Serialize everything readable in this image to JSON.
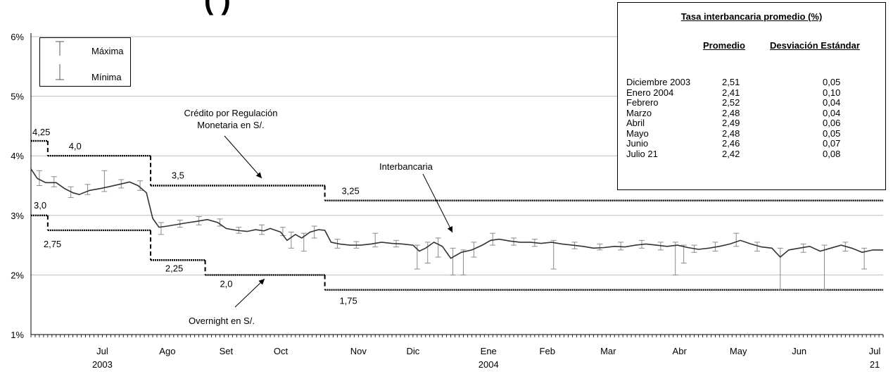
{
  "title_fragment": "(                                        )",
  "chart_data": {
    "type": "line",
    "y_axis": {
      "min": 1,
      "max": 6,
      "ticks": [
        "1%",
        "2%",
        "3%",
        "4%",
        "5%",
        "6%"
      ],
      "grid": true
    },
    "x_axis": {
      "start": "2003-06-11",
      "end": "2004-07-21",
      "labels": [
        {
          "line1": "Jul",
          "line2": "2003",
          "date": "2003-07-15"
        },
        {
          "line1": "Ago",
          "line2": "",
          "date": "2003-08-15"
        },
        {
          "line1": "Set",
          "line2": "",
          "date": "2003-09-12"
        },
        {
          "line1": "Oct",
          "line2": "",
          "date": "2003-10-08"
        },
        {
          "line1": "Nov",
          "line2": "",
          "date": "2003-11-14"
        },
        {
          "line1": "Dic",
          "line2": "",
          "date": "2003-12-10"
        },
        {
          "line1": "Ene",
          "line2": "2004",
          "date": "2004-01-15"
        },
        {
          "line1": "Feb",
          "line2": "",
          "date": "2004-02-12"
        },
        {
          "line1": "Mar",
          "line2": "",
          "date": "2004-03-12"
        },
        {
          "line1": "Abr",
          "line2": "",
          "date": "2004-04-15"
        },
        {
          "line1": "May",
          "line2": "",
          "date": "2004-05-13"
        },
        {
          "line1": "Jun",
          "line2": "",
          "date": "2004-06-11"
        },
        {
          "line1": "Jul",
          "line2": "21",
          "date": "2004-07-17"
        }
      ]
    },
    "series": [
      {
        "name": "Crédito por Regulación Monetaria en S/.",
        "role": "upper corridor",
        "steps": [
          {
            "from": "2003-06-11",
            "to": "2003-06-19",
            "value": 4.25
          },
          {
            "from": "2003-06-19",
            "to": "2003-08-07",
            "value": 4.0
          },
          {
            "from": "2003-08-07",
            "to": "2003-10-29",
            "value": 3.5
          },
          {
            "from": "2003-10-29",
            "to": "2004-07-21",
            "value": 3.25
          }
        ]
      },
      {
        "name": "Overnight en S/.",
        "role": "lower corridor",
        "steps": [
          {
            "from": "2003-06-11",
            "to": "2003-06-19",
            "value": 3.0
          },
          {
            "from": "2003-06-19",
            "to": "2003-08-07",
            "value": 2.75
          },
          {
            "from": "2003-08-07",
            "to": "2003-09-02",
            "value": 2.25
          },
          {
            "from": "2003-09-02",
            "to": "2003-10-29",
            "value": 2.0
          },
          {
            "from": "2003-10-29",
            "to": "2004-07-21",
            "value": 1.75
          }
        ]
      },
      {
        "name": "Interbancaria",
        "role": "daily average",
        "points": [
          [
            "2003-06-11",
            3.78
          ],
          [
            "2003-06-14",
            3.62
          ],
          [
            "2003-06-18",
            3.55
          ],
          [
            "2003-06-23",
            3.55
          ],
          [
            "2003-06-27",
            3.45
          ],
          [
            "2003-07-01",
            3.38
          ],
          [
            "2003-07-04",
            3.35
          ],
          [
            "2003-07-09",
            3.42
          ],
          [
            "2003-07-14",
            3.45
          ],
          [
            "2003-07-18",
            3.48
          ],
          [
            "2003-07-23",
            3.52
          ],
          [
            "2003-07-28",
            3.56
          ],
          [
            "2003-08-01",
            3.5
          ],
          [
            "2003-08-05",
            3.38
          ],
          [
            "2003-08-08",
            2.95
          ],
          [
            "2003-08-11",
            2.8
          ],
          [
            "2003-08-15",
            2.82
          ],
          [
            "2003-08-20",
            2.85
          ],
          [
            "2003-08-25",
            2.88
          ],
          [
            "2003-08-29",
            2.9
          ],
          [
            "2003-09-03",
            2.93
          ],
          [
            "2003-09-08",
            2.88
          ],
          [
            "2003-09-12",
            2.78
          ],
          [
            "2003-09-17",
            2.75
          ],
          [
            "2003-09-22",
            2.73
          ],
          [
            "2003-09-26",
            2.76
          ],
          [
            "2003-09-30",
            2.74
          ],
          [
            "2003-10-03",
            2.78
          ],
          [
            "2003-10-08",
            2.72
          ],
          [
            "2003-10-11",
            2.58
          ],
          [
            "2003-10-15",
            2.68
          ],
          [
            "2003-10-18",
            2.62
          ],
          [
            "2003-10-22",
            2.72
          ],
          [
            "2003-10-26",
            2.76
          ],
          [
            "2003-10-29",
            2.75
          ],
          [
            "2003-11-01",
            2.55
          ],
          [
            "2003-11-05",
            2.52
          ],
          [
            "2003-11-10",
            2.5
          ],
          [
            "2003-11-15",
            2.5
          ],
          [
            "2003-11-20",
            2.52
          ],
          [
            "2003-11-25",
            2.55
          ],
          [
            "2003-11-30",
            2.53
          ],
          [
            "2003-12-05",
            2.52
          ],
          [
            "2003-12-10",
            2.5
          ],
          [
            "2003-12-13",
            2.4
          ],
          [
            "2003-12-16",
            2.45
          ],
          [
            "2003-12-20",
            2.55
          ],
          [
            "2003-12-24",
            2.48
          ],
          [
            "2003-12-28",
            2.28
          ],
          [
            "2004-01-02",
            2.38
          ],
          [
            "2004-01-07",
            2.42
          ],
          [
            "2004-01-12",
            2.5
          ],
          [
            "2004-01-16",
            2.58
          ],
          [
            "2004-01-20",
            2.6
          ],
          [
            "2004-01-25",
            2.57
          ],
          [
            "2004-01-30",
            2.55
          ],
          [
            "2004-02-04",
            2.55
          ],
          [
            "2004-02-09",
            2.53
          ],
          [
            "2004-02-14",
            2.55
          ],
          [
            "2004-02-19",
            2.52
          ],
          [
            "2004-02-24",
            2.5
          ],
          [
            "2004-02-29",
            2.48
          ],
          [
            "2004-03-05",
            2.45
          ],
          [
            "2004-03-10",
            2.46
          ],
          [
            "2004-03-15",
            2.48
          ],
          [
            "2004-03-20",
            2.47
          ],
          [
            "2004-03-25",
            2.5
          ],
          [
            "2004-03-30",
            2.52
          ],
          [
            "2004-04-04",
            2.5
          ],
          [
            "2004-04-09",
            2.48
          ],
          [
            "2004-04-14",
            2.5
          ],
          [
            "2004-04-19",
            2.46
          ],
          [
            "2004-04-24",
            2.43
          ],
          [
            "2004-04-29",
            2.45
          ],
          [
            "2004-05-04",
            2.48
          ],
          [
            "2004-05-09",
            2.52
          ],
          [
            "2004-05-14",
            2.58
          ],
          [
            "2004-05-19",
            2.52
          ],
          [
            "2004-05-24",
            2.47
          ],
          [
            "2004-05-29",
            2.45
          ],
          [
            "2004-06-02",
            2.3
          ],
          [
            "2004-06-06",
            2.42
          ],
          [
            "2004-06-11",
            2.45
          ],
          [
            "2004-06-16",
            2.48
          ],
          [
            "2004-06-21",
            2.4
          ],
          [
            "2004-06-26",
            2.45
          ],
          [
            "2004-07-01",
            2.5
          ],
          [
            "2004-07-06",
            2.45
          ],
          [
            "2004-07-11",
            2.38
          ],
          [
            "2004-07-16",
            2.42
          ],
          [
            "2004-07-21",
            2.42
          ]
        ]
      }
    ],
    "range_bars": [
      [
        "2003-06-15",
        3.5,
        3.75
      ],
      [
        "2003-06-22",
        3.48,
        3.65
      ],
      [
        "2003-06-30",
        3.3,
        3.48
      ],
      [
        "2003-07-08",
        3.35,
        3.52
      ],
      [
        "2003-07-16",
        3.4,
        3.75
      ],
      [
        "2003-07-24",
        3.46,
        3.6
      ],
      [
        "2003-08-02",
        3.42,
        3.58
      ],
      [
        "2003-08-12",
        2.68,
        2.88
      ],
      [
        "2003-08-21",
        2.8,
        2.92
      ],
      [
        "2003-08-30",
        2.84,
        2.98
      ],
      [
        "2003-09-09",
        2.82,
        2.94
      ],
      [
        "2003-09-18",
        2.7,
        2.8
      ],
      [
        "2003-09-29",
        2.68,
        2.84
      ],
      [
        "2003-10-09",
        2.66,
        2.8
      ],
      [
        "2003-10-13",
        2.45,
        2.72
      ],
      [
        "2003-10-19",
        2.4,
        2.7
      ],
      [
        "2003-10-24",
        2.62,
        2.82
      ],
      [
        "2003-11-04",
        2.45,
        2.6
      ],
      [
        "2003-11-13",
        2.45,
        2.56
      ],
      [
        "2003-11-22",
        2.47,
        2.7
      ],
      [
        "2003-12-02",
        2.47,
        2.58
      ],
      [
        "2003-12-12",
        2.1,
        2.5
      ],
      [
        "2003-12-17",
        2.2,
        2.55
      ],
      [
        "2003-12-22",
        2.3,
        2.62
      ],
      [
        "2003-12-29",
        2.0,
        2.45
      ],
      [
        "2004-01-03",
        2.0,
        2.42
      ],
      [
        "2004-01-08",
        2.3,
        2.55
      ],
      [
        "2004-01-17",
        2.5,
        2.7
      ],
      [
        "2004-01-27",
        2.5,
        2.62
      ],
      [
        "2004-02-06",
        2.48,
        2.6
      ],
      [
        "2004-02-15",
        2.1,
        2.58
      ],
      [
        "2004-02-25",
        2.44,
        2.55
      ],
      [
        "2004-03-08",
        2.42,
        2.52
      ],
      [
        "2004-03-18",
        2.42,
        2.55
      ],
      [
        "2004-03-28",
        2.45,
        2.58
      ],
      [
        "2004-04-06",
        2.42,
        2.55
      ],
      [
        "2004-04-13",
        2.0,
        2.55
      ],
      [
        "2004-04-17",
        2.2,
        2.5
      ],
      [
        "2004-04-22",
        2.38,
        2.5
      ],
      [
        "2004-05-02",
        2.4,
        2.55
      ],
      [
        "2004-05-12",
        2.48,
        2.7
      ],
      [
        "2004-05-22",
        2.4,
        2.55
      ],
      [
        "2004-06-02",
        1.75,
        2.45
      ],
      [
        "2004-06-13",
        2.38,
        2.52
      ],
      [
        "2004-06-23",
        1.75,
        2.5
      ],
      [
        "2004-07-03",
        2.4,
        2.55
      ],
      [
        "2004-07-12",
        2.1,
        2.45
      ]
    ],
    "step_labels": [
      {
        "text": "4,25",
        "date": "2003-06-11",
        "value": 4.25
      },
      {
        "text": "4,0",
        "date": "2003-06-29",
        "value": 4.0
      },
      {
        "text": "3,5",
        "date": "2003-08-17",
        "value": 3.5
      },
      {
        "text": "3,25",
        "date": "2003-11-06",
        "value": 3.25
      },
      {
        "text": "3,0",
        "date": "2003-06-11",
        "value": 3.0
      },
      {
        "text": "2,75",
        "date": "2003-06-19",
        "value": 2.75
      },
      {
        "text": "2,25",
        "date": "2003-08-14",
        "value": 2.25
      },
      {
        "text": "2,0",
        "date": "2003-09-09",
        "value": 2.0
      },
      {
        "text": "1,75",
        "date": "2003-11-05",
        "value": 1.75
      }
    ]
  },
  "legend": {
    "max_label": "Máxima",
    "min_label": "Mínima"
  },
  "annotations": {
    "credito_line1": "Crédito por Regulación",
    "credito_line2": "Monetaria en S/.",
    "interbancaria": "Interbancaria",
    "overnight": "Overnight en S/."
  },
  "stats_table": {
    "title": "Tasa interbancaria promedio (%)",
    "headers": {
      "mean": "Promedio",
      "std": "Desviación Estándar"
    },
    "rows": [
      {
        "period": "Diciembre 2003",
        "mean": "2,51",
        "std": "0,05"
      },
      {
        "period": "Enero 2004",
        "mean": "2,41",
        "std": "0,10"
      },
      {
        "period": "Febrero",
        "mean": "2,52",
        "std": "0,04"
      },
      {
        "period": "Marzo",
        "mean": "2,48",
        "std": "0,04"
      },
      {
        "period": "Abril",
        "mean": "2,49",
        "std": "0,06"
      },
      {
        "period": "Mayo",
        "mean": "2,48",
        "std": "0,05"
      },
      {
        "period": "Junio",
        "mean": "2,46",
        "std": "0,07"
      },
      {
        "period": "Julio 21",
        "mean": "2,42",
        "std": "0,08"
      }
    ]
  }
}
